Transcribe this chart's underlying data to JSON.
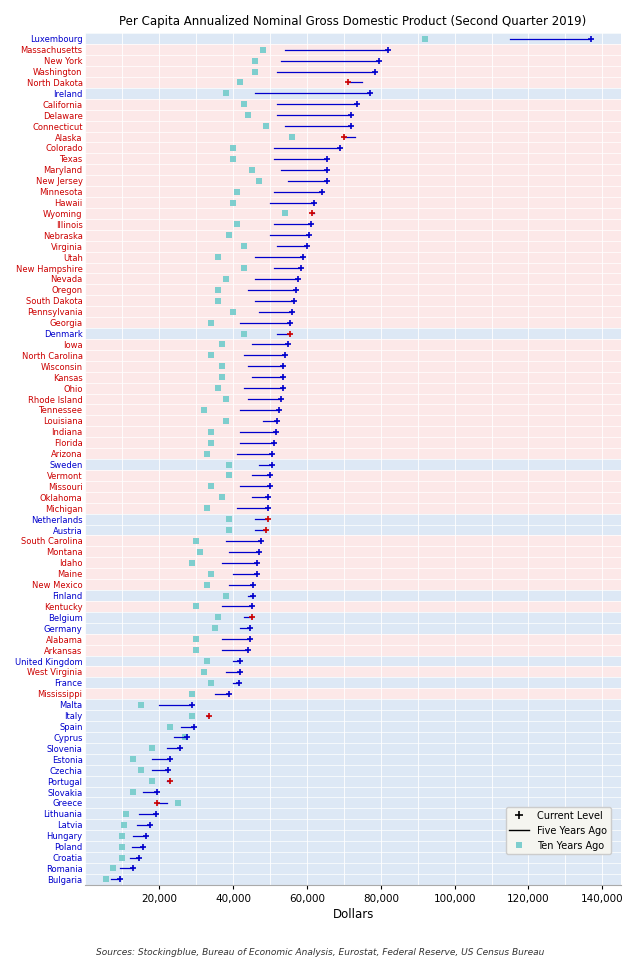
{
  "title": "Per Capita Annualized Nominal Gross Domestic Product (Second Quarter 2019)",
  "xlabel": "Dollars",
  "source": "Sources: Stockingblue, Bureau of Economic Analysis, Eurostat, Federal Reserve, US Census Bureau",
  "xlim": [
    0,
    145000
  ],
  "xticks": [
    20000,
    40000,
    60000,
    80000,
    100000,
    120000,
    140000
  ],
  "xticklabels": [
    "20,000",
    "40,000",
    "60,000",
    "80,000",
    "100,000",
    "120,000",
    "140,000"
  ],
  "entries": [
    {
      "name": "Luxembourg",
      "eu": true,
      "current": 137017,
      "five": 115000,
      "ten": 92000,
      "current_red": false
    },
    {
      "name": "Massachusetts",
      "eu": false,
      "current": 82084,
      "five": 54000,
      "ten": 48000,
      "current_red": false
    },
    {
      "name": "New York",
      "eu": false,
      "current": 79500,
      "five": 53000,
      "ten": 46000,
      "current_red": false
    },
    {
      "name": "Washington",
      "eu": false,
      "current": 78500,
      "five": 52000,
      "ten": 46000,
      "current_red": false
    },
    {
      "name": "North Dakota",
      "eu": false,
      "current": 71000,
      "five": 75000,
      "ten": 42000,
      "current_red": true
    },
    {
      "name": "Ireland",
      "eu": true,
      "current": 77000,
      "five": 46000,
      "ten": 38000,
      "current_red": false
    },
    {
      "name": "California",
      "eu": false,
      "current": 73500,
      "five": 52000,
      "ten": 43000,
      "current_red": false
    },
    {
      "name": "Delaware",
      "eu": false,
      "current": 72000,
      "five": 52000,
      "ten": 44000,
      "current_red": false
    },
    {
      "name": "Connecticut",
      "eu": false,
      "current": 72000,
      "five": 54000,
      "ten": 49000,
      "current_red": false
    },
    {
      "name": "Alaska",
      "eu": false,
      "current": 70000,
      "five": 73000,
      "ten": 56000,
      "current_red": true
    },
    {
      "name": "Colorado",
      "eu": false,
      "current": 69000,
      "five": 51000,
      "ten": 40000,
      "current_red": false
    },
    {
      "name": "Texas",
      "eu": false,
      "current": 65500,
      "five": 51000,
      "ten": 40000,
      "current_red": false
    },
    {
      "name": "Maryland",
      "eu": false,
      "current": 65500,
      "five": 53000,
      "ten": 45000,
      "current_red": false
    },
    {
      "name": "New Jersey",
      "eu": false,
      "current": 65500,
      "five": 55000,
      "ten": 47000,
      "current_red": false
    },
    {
      "name": "Minnesota",
      "eu": false,
      "current": 64000,
      "five": 51000,
      "ten": 41000,
      "current_red": false
    },
    {
      "name": "Hawaii",
      "eu": false,
      "current": 62000,
      "five": 50000,
      "ten": 40000,
      "current_red": false
    },
    {
      "name": "Wyoming",
      "eu": false,
      "current": 61500,
      "five": 62000,
      "ten": 54000,
      "current_red": true
    },
    {
      "name": "Illinois",
      "eu": false,
      "current": 61000,
      "five": 51000,
      "ten": 41000,
      "current_red": false
    },
    {
      "name": "Nebraska",
      "eu": false,
      "current": 60500,
      "five": 50000,
      "ten": 39000,
      "current_red": false
    },
    {
      "name": "Virginia",
      "eu": false,
      "current": 60000,
      "five": 52000,
      "ten": 43000,
      "current_red": false
    },
    {
      "name": "Utah",
      "eu": false,
      "current": 59000,
      "five": 46000,
      "ten": 36000,
      "current_red": false
    },
    {
      "name": "New Hampshire",
      "eu": false,
      "current": 58500,
      "five": 51000,
      "ten": 43000,
      "current_red": false
    },
    {
      "name": "Nevada",
      "eu": false,
      "current": 57500,
      "five": 46000,
      "ten": 38000,
      "current_red": false
    },
    {
      "name": "Oregon",
      "eu": false,
      "current": 57000,
      "five": 44000,
      "ten": 36000,
      "current_red": false
    },
    {
      "name": "South Dakota",
      "eu": false,
      "current": 56500,
      "five": 46000,
      "ten": 36000,
      "current_red": false
    },
    {
      "name": "Pennsylvania",
      "eu": false,
      "current": 56000,
      "five": 47000,
      "ten": 40000,
      "current_red": false
    },
    {
      "name": "Georgia",
      "eu": false,
      "current": 55500,
      "five": 42000,
      "ten": 34000,
      "current_red": false
    },
    {
      "name": "Denmark",
      "eu": true,
      "current": 55500,
      "five": 52000,
      "ten": 43000,
      "current_red": true
    },
    {
      "name": "Iowa",
      "eu": false,
      "current": 55000,
      "five": 45000,
      "ten": 37000,
      "current_red": false
    },
    {
      "name": "North Carolina",
      "eu": false,
      "current": 54000,
      "five": 43000,
      "ten": 34000,
      "current_red": false
    },
    {
      "name": "Wisconsin",
      "eu": false,
      "current": 53500,
      "five": 44000,
      "ten": 37000,
      "current_red": false
    },
    {
      "name": "Kansas",
      "eu": false,
      "current": 53500,
      "five": 45000,
      "ten": 37000,
      "current_red": false
    },
    {
      "name": "Ohio",
      "eu": false,
      "current": 53500,
      "five": 43000,
      "ten": 36000,
      "current_red": false
    },
    {
      "name": "Rhode Island",
      "eu": false,
      "current": 53000,
      "five": 44000,
      "ten": 38000,
      "current_red": false
    },
    {
      "name": "Tennessee",
      "eu": false,
      "current": 52500,
      "five": 42000,
      "ten": 32000,
      "current_red": false
    },
    {
      "name": "Louisiana",
      "eu": false,
      "current": 52000,
      "five": 48000,
      "ten": 38000,
      "current_red": false
    },
    {
      "name": "Indiana",
      "eu": false,
      "current": 51500,
      "five": 42000,
      "ten": 34000,
      "current_red": false
    },
    {
      "name": "Florida",
      "eu": false,
      "current": 51000,
      "five": 42000,
      "ten": 34000,
      "current_red": false
    },
    {
      "name": "Arizona",
      "eu": false,
      "current": 50500,
      "five": 41000,
      "ten": 33000,
      "current_red": false
    },
    {
      "name": "Sweden",
      "eu": true,
      "current": 50500,
      "five": 47000,
      "ten": 39000,
      "current_red": false
    },
    {
      "name": "Vermont",
      "eu": false,
      "current": 50000,
      "five": 45000,
      "ten": 39000,
      "current_red": false
    },
    {
      "name": "Missouri",
      "eu": false,
      "current": 50000,
      "five": 42000,
      "ten": 34000,
      "current_red": false
    },
    {
      "name": "Oklahoma",
      "eu": false,
      "current": 49500,
      "five": 45000,
      "ten": 37000,
      "current_red": false
    },
    {
      "name": "Michigan",
      "eu": false,
      "current": 49500,
      "five": 41000,
      "ten": 33000,
      "current_red": false
    },
    {
      "name": "Netherlands",
      "eu": true,
      "current": 49500,
      "five": 46000,
      "ten": 39000,
      "current_red": true
    },
    {
      "name": "Austria",
      "eu": true,
      "current": 49000,
      "five": 46000,
      "ten": 39000,
      "current_red": true
    },
    {
      "name": "South Carolina",
      "eu": false,
      "current": 47500,
      "five": 38000,
      "ten": 30000,
      "current_red": false
    },
    {
      "name": "Montana",
      "eu": false,
      "current": 47000,
      "five": 39000,
      "ten": 31000,
      "current_red": false
    },
    {
      "name": "Idaho",
      "eu": false,
      "current": 46500,
      "five": 37000,
      "ten": 29000,
      "current_red": false
    },
    {
      "name": "Maine",
      "eu": false,
      "current": 46500,
      "five": 40000,
      "ten": 34000,
      "current_red": false
    },
    {
      "name": "New Mexico",
      "eu": false,
      "current": 45500,
      "five": 39000,
      "ten": 33000,
      "current_red": false
    },
    {
      "name": "Finland",
      "eu": true,
      "current": 45500,
      "five": 44000,
      "ten": 38000,
      "current_red": false
    },
    {
      "name": "Kentucky",
      "eu": false,
      "current": 45000,
      "five": 37000,
      "ten": 30000,
      "current_red": false
    },
    {
      "name": "Belgium",
      "eu": true,
      "current": 45000,
      "five": 43000,
      "ten": 36000,
      "current_red": true
    },
    {
      "name": "Germany",
      "eu": true,
      "current": 44500,
      "five": 42000,
      "ten": 35000,
      "current_red": false
    },
    {
      "name": "Alabama",
      "eu": false,
      "current": 44500,
      "five": 37000,
      "ten": 30000,
      "current_red": false
    },
    {
      "name": "Arkansas",
      "eu": false,
      "current": 44000,
      "five": 37000,
      "ten": 30000,
      "current_red": false
    },
    {
      "name": "United Kingdom",
      "eu": true,
      "current": 42000,
      "five": 40000,
      "ten": 33000,
      "current_red": false
    },
    {
      "name": "West Virginia",
      "eu": false,
      "current": 42000,
      "five": 38000,
      "ten": 32000,
      "current_red": false
    },
    {
      "name": "France",
      "eu": true,
      "current": 41500,
      "five": 40000,
      "ten": 34000,
      "current_red": false
    },
    {
      "name": "Mississippi",
      "eu": false,
      "current": 39000,
      "five": 35000,
      "ten": 29000,
      "current_red": false
    },
    {
      "name": "Malta",
      "eu": true,
      "current": 29000,
      "five": 20000,
      "ten": 15000,
      "current_red": false
    },
    {
      "name": "Italy",
      "eu": true,
      "current": 33500,
      "five": 33000,
      "ten": 29000,
      "current_red": true
    },
    {
      "name": "Spain",
      "eu": true,
      "current": 29500,
      "five": 26000,
      "ten": 23000,
      "current_red": false
    },
    {
      "name": "Cyprus",
      "eu": true,
      "current": 27500,
      "five": 24000,
      "ten": 27000,
      "current_red": false
    },
    {
      "name": "Slovenia",
      "eu": true,
      "current": 25500,
      "five": 22000,
      "ten": 18000,
      "current_red": false
    },
    {
      "name": "Estonia",
      "eu": true,
      "current": 23000,
      "five": 18000,
      "ten": 13000,
      "current_red": false
    },
    {
      "name": "Czechia",
      "eu": true,
      "current": 22500,
      "five": 18000,
      "ten": 15000,
      "current_red": false
    },
    {
      "name": "Portugal",
      "eu": true,
      "current": 23000,
      "five": 22000,
      "ten": 18000,
      "current_red": true
    },
    {
      "name": "Slovakia",
      "eu": true,
      "current": 19500,
      "five": 15500,
      "ten": 13000,
      "current_red": false
    },
    {
      "name": "Greece",
      "eu": true,
      "current": 19500,
      "five": 22000,
      "ten": 25000,
      "current_red": true
    },
    {
      "name": "Lithuania",
      "eu": true,
      "current": 19000,
      "five": 14500,
      "ten": 11000,
      "current_red": false
    },
    {
      "name": "Latvia",
      "eu": true,
      "current": 17500,
      "five": 14000,
      "ten": 10500,
      "current_red": false
    },
    {
      "name": "Hungary",
      "eu": true,
      "current": 16500,
      "five": 13000,
      "ten": 10000,
      "current_red": false
    },
    {
      "name": "Poland",
      "eu": true,
      "current": 15500,
      "five": 12500,
      "ten": 10000,
      "current_red": false
    },
    {
      "name": "Croatia",
      "eu": true,
      "current": 14500,
      "five": 12000,
      "ten": 10000,
      "current_red": false
    },
    {
      "name": "Romania",
      "eu": true,
      "current": 13000,
      "five": 9500,
      "ten": 7500,
      "current_red": false
    },
    {
      "name": "Bulgaria",
      "eu": true,
      "current": 9500,
      "five": 7000,
      "ten": 5500,
      "current_red": false
    }
  ],
  "bg_us": "#fce8e8",
  "bg_eu": "#dde8f5",
  "grid_color": "#ffffff",
  "line_color": "#0000cc",
  "ten_color": "#7ecece",
  "dot_blue": "#0000cc",
  "dot_red": "#cc0000"
}
